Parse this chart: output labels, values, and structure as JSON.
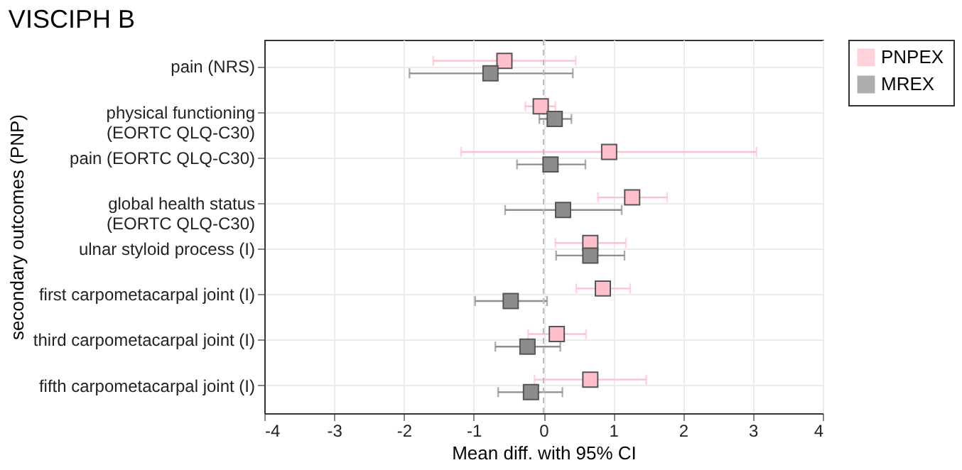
{
  "chart_data": {
    "type": "scatter",
    "orientation": "horizontal",
    "title": "VISCIPH B",
    "xlabel": "Mean diff. with 95% CI",
    "ylabel": "secondary outcomes (PNP)",
    "categories": [
      "pain (NRS)",
      "physical functioning\n(EORTC QLQ-C30)",
      "pain (EORTC QLQ-C30)",
      "global health status\n(EORTC QLQ-C30)",
      "ulnar styloid process (I)",
      "first carpometacarpal joint (I)",
      "third carpometacarpal joint (I)",
      "fifth carpometacarpal joint (I)"
    ],
    "series": [
      {
        "name": "PNPEX",
        "color": "#ffc0cb",
        "values": [
          -0.56,
          -0.04,
          0.94,
          1.27,
          0.67,
          0.85,
          0.19,
          0.67
        ],
        "errors": [
          [
            -1.58,
            0.46
          ],
          [
            -0.26,
            0.17
          ],
          [
            -1.18,
            3.05
          ],
          [
            0.78,
            1.77
          ],
          [
            0.17,
            1.18
          ],
          [
            0.47,
            1.24
          ],
          [
            -0.22,
            0.61
          ],
          [
            -0.13,
            1.47
          ]
        ]
      },
      {
        "name": "MREX",
        "color": "#8c8c8c",
        "values": [
          -0.76,
          0.16,
          0.1,
          0.28,
          0.67,
          -0.47,
          -0.23,
          -0.18
        ],
        "errors": [
          [
            -1.92,
            0.42
          ],
          [
            -0.06,
            0.4
          ],
          [
            -0.38,
            0.6
          ],
          [
            -0.55,
            1.12
          ],
          [
            0.18,
            1.16
          ],
          [
            -0.98,
            0.05
          ],
          [
            -0.69,
            0.24
          ],
          [
            -0.65,
            0.27
          ]
        ]
      }
    ],
    "xlim": [
      -4,
      4
    ],
    "xticks": [
      -4,
      -3,
      -2,
      -1,
      0,
      1,
      2,
      3,
      4
    ],
    "ref_lines": [
      {
        "axis": "x",
        "value": 0,
        "color": "#bbbbbb",
        "line_style": "dashed"
      }
    ],
    "grid": true,
    "legend": "right",
    "marker": "square"
  }
}
